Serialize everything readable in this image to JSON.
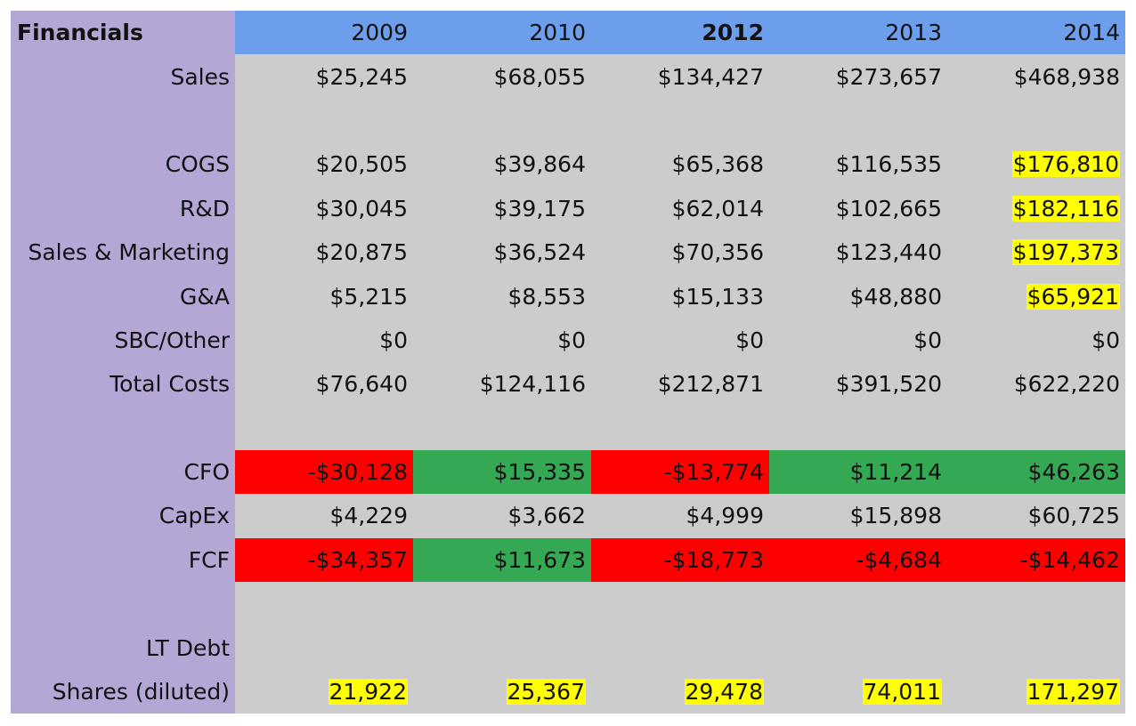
{
  "sheet": {
    "title": "Financials",
    "years": [
      {
        "label": "2009",
        "bold": false
      },
      {
        "label": "2010",
        "bold": false
      },
      {
        "label": "2012",
        "bold": true
      },
      {
        "label": "2013",
        "bold": false
      },
      {
        "label": "2014",
        "bold": false
      }
    ],
    "colors": {
      "label_bg": "#b4a7d6",
      "header_bg": "#6d9eeb",
      "cell_bg": "#cccccc",
      "negative_fill": "#ff0000",
      "positive_fill": "#34a853",
      "highlight": "#ffff00"
    },
    "rows": [
      {
        "label": "Sales",
        "cells": [
          {
            "v": "$25,245"
          },
          {
            "v": "$68,055"
          },
          {
            "v": "$134,427"
          },
          {
            "v": "$273,657"
          },
          {
            "v": "$468,938"
          }
        ]
      },
      {
        "label": "",
        "cells": [
          {
            "v": ""
          },
          {
            "v": ""
          },
          {
            "v": ""
          },
          {
            "v": ""
          },
          {
            "v": ""
          }
        ]
      },
      {
        "label": "COGS",
        "cells": [
          {
            "v": "$20,505"
          },
          {
            "v": "$39,864"
          },
          {
            "v": "$65,368"
          },
          {
            "v": "$116,535"
          },
          {
            "v": "$176,810",
            "hl": true
          }
        ]
      },
      {
        "label": "R&D",
        "cells": [
          {
            "v": "$30,045"
          },
          {
            "v": "$39,175"
          },
          {
            "v": "$62,014"
          },
          {
            "v": "$102,665"
          },
          {
            "v": "$182,116",
            "hl": true
          }
        ]
      },
      {
        "label": "Sales & Marketing",
        "cells": [
          {
            "v": "$20,875"
          },
          {
            "v": "$36,524"
          },
          {
            "v": "$70,356"
          },
          {
            "v": "$123,440"
          },
          {
            "v": "$197,373",
            "hl": true
          }
        ]
      },
      {
        "label": "G&A",
        "cells": [
          {
            "v": "$5,215"
          },
          {
            "v": "$8,553"
          },
          {
            "v": "$15,133"
          },
          {
            "v": "$48,880"
          },
          {
            "v": "$65,921",
            "hl": true
          }
        ]
      },
      {
        "label": "SBC/Other",
        "cells": [
          {
            "v": "$0"
          },
          {
            "v": "$0"
          },
          {
            "v": "$0"
          },
          {
            "v": "$0"
          },
          {
            "v": "$0"
          }
        ]
      },
      {
        "label": "Total Costs",
        "cells": [
          {
            "v": "$76,640"
          },
          {
            "v": "$124,116"
          },
          {
            "v": "$212,871"
          },
          {
            "v": "$391,520"
          },
          {
            "v": "$622,220"
          }
        ]
      },
      {
        "label": "",
        "cells": [
          {
            "v": ""
          },
          {
            "v": ""
          },
          {
            "v": ""
          },
          {
            "v": ""
          },
          {
            "v": ""
          }
        ]
      },
      {
        "label": "CFO",
        "cells": [
          {
            "v": "-$30,128",
            "fill": "negative"
          },
          {
            "v": "$15,335",
            "fill": "positive"
          },
          {
            "v": "-$13,774",
            "fill": "negative"
          },
          {
            "v": "$11,214",
            "fill": "positive"
          },
          {
            "v": "$46,263",
            "fill": "positive"
          }
        ]
      },
      {
        "label": "CapEx",
        "cells": [
          {
            "v": "$4,229"
          },
          {
            "v": "$3,662"
          },
          {
            "v": "$4,999"
          },
          {
            "v": "$15,898"
          },
          {
            "v": "$60,725"
          }
        ]
      },
      {
        "label": "FCF",
        "cells": [
          {
            "v": "-$34,357",
            "fill": "negative"
          },
          {
            "v": "$11,673",
            "fill": "positive"
          },
          {
            "v": "-$18,773",
            "fill": "negative"
          },
          {
            "v": "-$4,684",
            "fill": "negative"
          },
          {
            "v": "-$14,462",
            "fill": "negative"
          }
        ]
      },
      {
        "label": "",
        "cells": [
          {
            "v": ""
          },
          {
            "v": ""
          },
          {
            "v": ""
          },
          {
            "v": ""
          },
          {
            "v": ""
          }
        ]
      },
      {
        "label": "LT Debt",
        "cells": [
          {
            "v": ""
          },
          {
            "v": ""
          },
          {
            "v": ""
          },
          {
            "v": ""
          },
          {
            "v": ""
          }
        ]
      },
      {
        "label": "Shares (diluted)",
        "cells": [
          {
            "v": "21,922",
            "hl": true
          },
          {
            "v": "25,367",
            "hl": true
          },
          {
            "v": "29,478",
            "hl": true
          },
          {
            "v": "74,011",
            "hl": true
          },
          {
            "v": "171,297",
            "hl": true
          }
        ]
      }
    ]
  }
}
